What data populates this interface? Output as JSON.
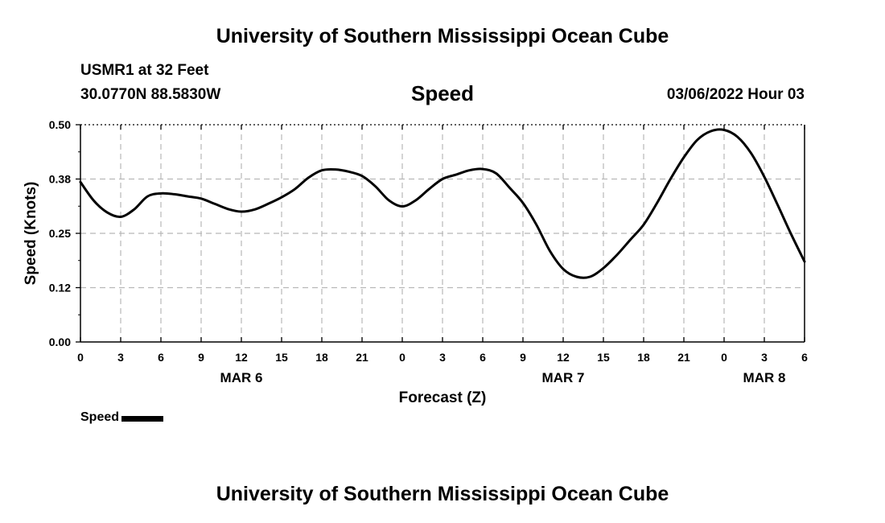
{
  "header": {
    "title": "University of Southern Mississippi Ocean Cube",
    "station": "USMR1 at 32 Feet",
    "coordinates": "30.0770N  88.5830W",
    "datetime": "03/06/2022 Hour 03"
  },
  "footer": {
    "title": "University of Southern Mississippi Ocean Cube"
  },
  "chart_data": {
    "type": "line",
    "title": "Speed",
    "xlabel": "Forecast (Z)",
    "ylabel": "Speed (Knots)",
    "ylim": [
      0,
      0.5
    ],
    "xlim": [
      0,
      54
    ],
    "yticks": [
      "0.00",
      "0.12",
      "0.25",
      "0.38",
      "0.50"
    ],
    "ytick_values": [
      0,
      0.125,
      0.25,
      0.375,
      0.5
    ],
    "xtick_labels": [
      "0",
      "3",
      "6",
      "9",
      "12",
      "15",
      "18",
      "21",
      "0",
      "3",
      "6",
      "9",
      "12",
      "15",
      "18",
      "21",
      "0",
      "3",
      "6"
    ],
    "xtick_values": [
      0,
      3,
      6,
      9,
      12,
      15,
      18,
      21,
      24,
      27,
      30,
      33,
      36,
      39,
      42,
      45,
      48,
      51,
      54
    ],
    "date_labels": [
      {
        "label": "MAR 6",
        "x": 12
      },
      {
        "label": "MAR 7",
        "x": 36
      },
      {
        "label": "MAR 8",
        "x": 51
      }
    ],
    "grid": true,
    "legend_position": "bottom-left",
    "series": [
      {
        "name": "Speed",
        "color": "#000000",
        "x": [
          0,
          1,
          2,
          3,
          4,
          5,
          6,
          7,
          8,
          9,
          10,
          11,
          12,
          13,
          14,
          15,
          16,
          17,
          18,
          19,
          20,
          21,
          22,
          23,
          24,
          25,
          26,
          27,
          28,
          29,
          30,
          31,
          32,
          33,
          34,
          35,
          36,
          37,
          38,
          39,
          40,
          41,
          42,
          43,
          44,
          45,
          46,
          47,
          48,
          49,
          50,
          51,
          52,
          53,
          54
        ],
        "values": [
          0.368,
          0.325,
          0.298,
          0.288,
          0.305,
          0.335,
          0.342,
          0.34,
          0.335,
          0.33,
          0.318,
          0.306,
          0.3,
          0.305,
          0.318,
          0.333,
          0.352,
          0.378,
          0.395,
          0.397,
          0.392,
          0.382,
          0.358,
          0.326,
          0.312,
          0.326,
          0.352,
          0.375,
          0.385,
          0.395,
          0.398,
          0.388,
          0.355,
          0.32,
          0.27,
          0.21,
          0.168,
          0.15,
          0.15,
          0.17,
          0.2,
          0.235,
          0.27,
          0.32,
          0.375,
          0.425,
          0.465,
          0.485,
          0.488,
          0.472,
          0.435,
          0.38,
          0.315,
          0.248,
          0.185
        ]
      }
    ]
  }
}
